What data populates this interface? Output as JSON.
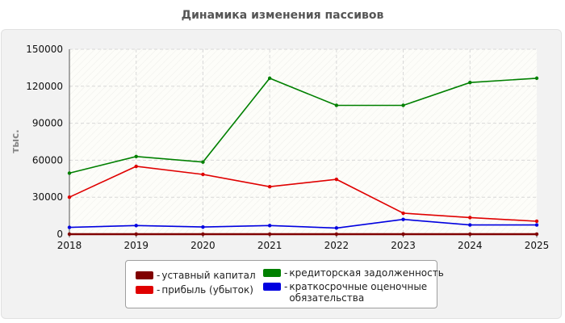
{
  "chart_data": {
    "type": "line",
    "title": "Динамика изменения пассивов",
    "ylabel": "тыс.",
    "xlabel": "",
    "ylim": [
      0,
      150000
    ],
    "yticks": [
      0,
      30000,
      60000,
      90000,
      120000,
      150000
    ],
    "categories": [
      "2018",
      "2019",
      "2020",
      "2021",
      "2022",
      "2023",
      "2024",
      "2025"
    ],
    "grid": true,
    "legend_position": "bottom",
    "series": [
      {
        "name": "уставный капитал",
        "color": "#800000",
        "values": [
          10,
          10,
          10,
          10,
          10,
          10,
          10,
          10
        ]
      },
      {
        "name": "прибыль (убыток)",
        "color": "#e00000",
        "values": [
          30000,
          55000,
          48500,
          38500,
          44500,
          17000,
          13500,
          10500
        ]
      },
      {
        "name": "кредиторская задолженность",
        "color": "#008000",
        "values": [
          49500,
          63000,
          58500,
          126500,
          104500,
          104500,
          123000,
          126500
        ]
      },
      {
        "name": "краткосрочные оценочные обязательства",
        "color": "#0000e0",
        "values": [
          5500,
          7000,
          5800,
          7000,
          5000,
          12000,
          7500,
          7500
        ]
      }
    ]
  }
}
